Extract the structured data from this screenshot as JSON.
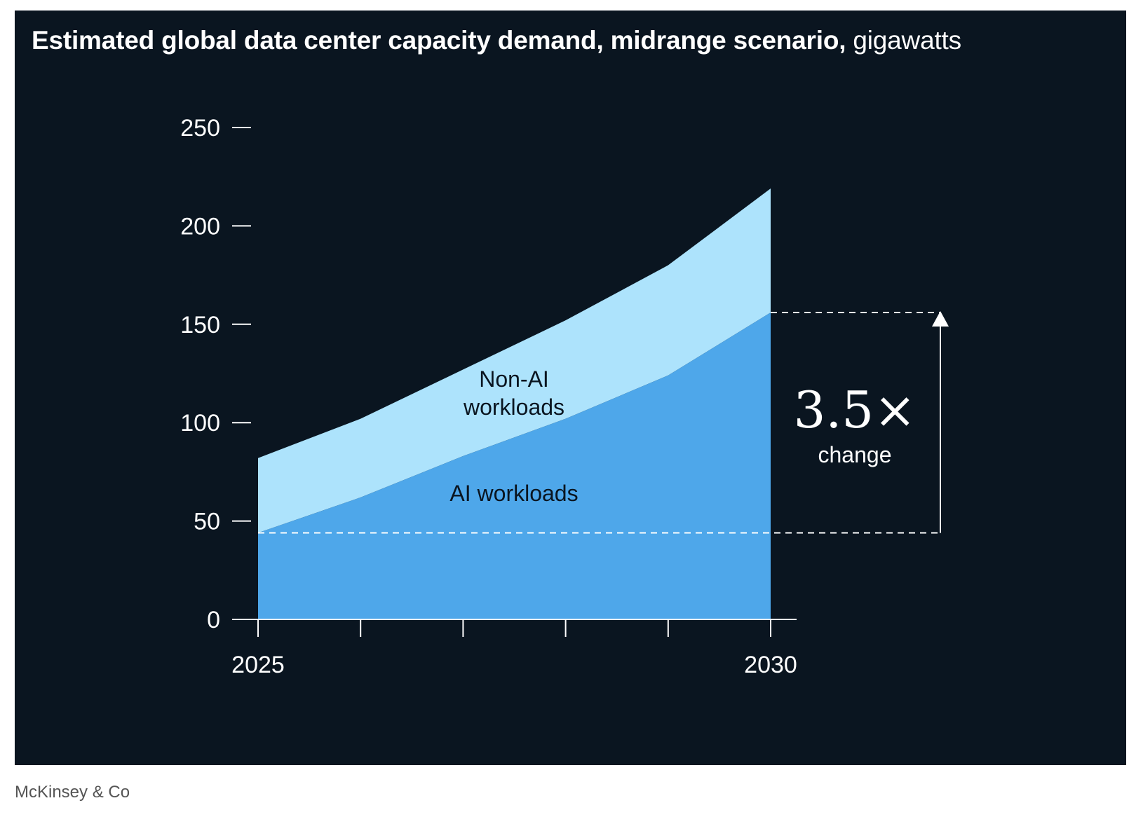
{
  "chart_data": {
    "type": "area",
    "title": "Estimated global data center capacity demand, midrange scenario,",
    "unit": "gigawatts",
    "x": [
      2025,
      2026,
      2027,
      2028,
      2029,
      2030
    ],
    "x_tick_labels": [
      "2025",
      "",
      "",
      "",
      "",
      "2030"
    ],
    "y_ticks": [
      0,
      50,
      100,
      150,
      200,
      250
    ],
    "ylim": [
      0,
      250
    ],
    "stacked": true,
    "series": [
      {
        "name": "AI workloads",
        "label": "AI workloads",
        "values": [
          44,
          62,
          83,
          102,
          124,
          156
        ],
        "color": "#4ea7ea"
      },
      {
        "name": "Non-AI workloads",
        "label_lines": [
          "Non-AI",
          "workloads"
        ],
        "values": [
          38,
          40,
          44,
          50,
          56,
          63
        ],
        "color": "#ade3fc"
      }
    ],
    "annotation": {
      "from_value": 44,
      "to_value": 156,
      "multiplier": "3.5×",
      "label": "change"
    }
  },
  "source": "McKinsey & Co"
}
